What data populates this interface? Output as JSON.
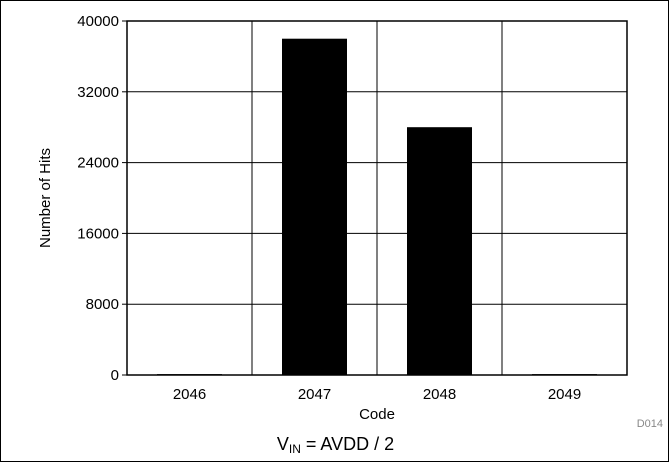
{
  "chart_data": {
    "type": "bar",
    "categories": [
      "2046",
      "2047",
      "2048",
      "2049"
    ],
    "values": [
      100,
      38000,
      28000,
      100
    ],
    "xlabel": "Code",
    "ylabel": "Number of Hits",
    "ylim": [
      0,
      40000
    ],
    "yticks": [
      0,
      8000,
      16000,
      24000,
      32000,
      40000
    ],
    "ytick_labels": [
      "0",
      "8000",
      "16000",
      "24000",
      "32000",
      "40000"
    ],
    "grid": true,
    "bar_color": "#000000"
  },
  "footer": {
    "vin_main": "V",
    "vin_sub": "IN",
    "vin_rest": " = AVDD / 2"
  },
  "figure_id": "D014"
}
